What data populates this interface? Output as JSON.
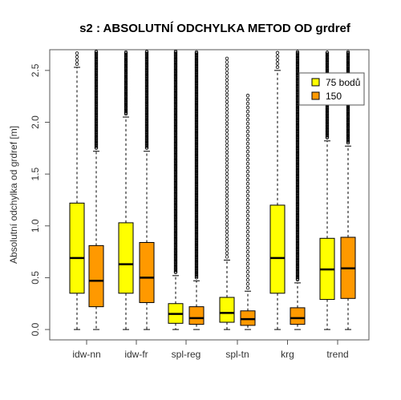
{
  "chart_data": {
    "type": "boxplot",
    "title": "s2 : ABSOLUTNÍ ODCHYLKA METOD OD grdref",
    "xlabel": "",
    "ylabel": "Absolutní odchylka od grdref [m]",
    "ylim": [
      -0.1,
      2.7
    ],
    "yticks": [
      "0.0",
      "0.5",
      "1.0",
      "1.5",
      "2.0",
      "2.5"
    ],
    "categories": [
      "idw-nn",
      "idw-fr",
      "spl-reg",
      "spl-tn",
      "krg",
      "trend"
    ],
    "legend": {
      "placement": "top-right",
      "entries": [
        {
          "label": "75 bodů",
          "color": "#ffff00"
        },
        {
          "label": "150",
          "color": "#ff9900"
        }
      ]
    },
    "series": [
      {
        "name": "75 bodů",
        "color": "#ffff00",
        "boxes": [
          {
            "min": 0.0,
            "q1": 0.35,
            "median": 0.69,
            "q3": 1.22,
            "whisker_high": 2.53,
            "outliers_from": 2.53,
            "outliers_to": 2.7
          },
          {
            "min": 0.0,
            "q1": 0.35,
            "median": 0.63,
            "q3": 1.03,
            "whisker_high": 2.05,
            "outliers_from": 2.05,
            "outliers_to": 2.7
          },
          {
            "min": 0.0,
            "q1": 0.06,
            "median": 0.15,
            "q3": 0.25,
            "whisker_high": 0.52,
            "outliers_from": 0.52,
            "outliers_to": 2.7
          },
          {
            "min": 0.0,
            "q1": 0.07,
            "median": 0.16,
            "q3": 0.31,
            "whisker_high": 0.67,
            "outliers_from": 0.67,
            "outliers_to": 2.62
          },
          {
            "min": 0.0,
            "q1": 0.35,
            "median": 0.69,
            "q3": 1.2,
            "whisker_high": 2.5,
            "outliers_from": 2.5,
            "outliers_to": 2.7
          },
          {
            "min": 0.0,
            "q1": 0.29,
            "median": 0.58,
            "q3": 0.88,
            "whisker_high": 1.82,
            "outliers_from": 1.82,
            "outliers_to": 2.7
          }
        ]
      },
      {
        "name": "150",
        "color": "#ff9900",
        "boxes": [
          {
            "min": 0.0,
            "q1": 0.22,
            "median": 0.47,
            "q3": 0.81,
            "whisker_high": 1.72,
            "outliers_from": 1.72,
            "outliers_to": 2.7
          },
          {
            "min": 0.0,
            "q1": 0.26,
            "median": 0.5,
            "q3": 0.84,
            "whisker_high": 1.72,
            "outliers_from": 1.72,
            "outliers_to": 2.7
          },
          {
            "min": 0.0,
            "q1": 0.05,
            "median": 0.11,
            "q3": 0.22,
            "whisker_high": 0.47,
            "outliers_from": 0.47,
            "outliers_to": 2.7
          },
          {
            "min": 0.0,
            "q1": 0.04,
            "median": 0.1,
            "q3": 0.18,
            "whisker_high": 0.37,
            "outliers_from": 0.37,
            "outliers_to": 2.26
          },
          {
            "min": 0.0,
            "q1": 0.05,
            "median": 0.11,
            "q3": 0.21,
            "whisker_high": 0.45,
            "outliers_from": 0.45,
            "outliers_to": 2.7
          },
          {
            "min": 0.0,
            "q1": 0.3,
            "median": 0.59,
            "q3": 0.89,
            "whisker_high": 1.77,
            "outliers_from": 1.77,
            "outliers_to": 2.7
          }
        ]
      }
    ],
    "grid": false
  }
}
